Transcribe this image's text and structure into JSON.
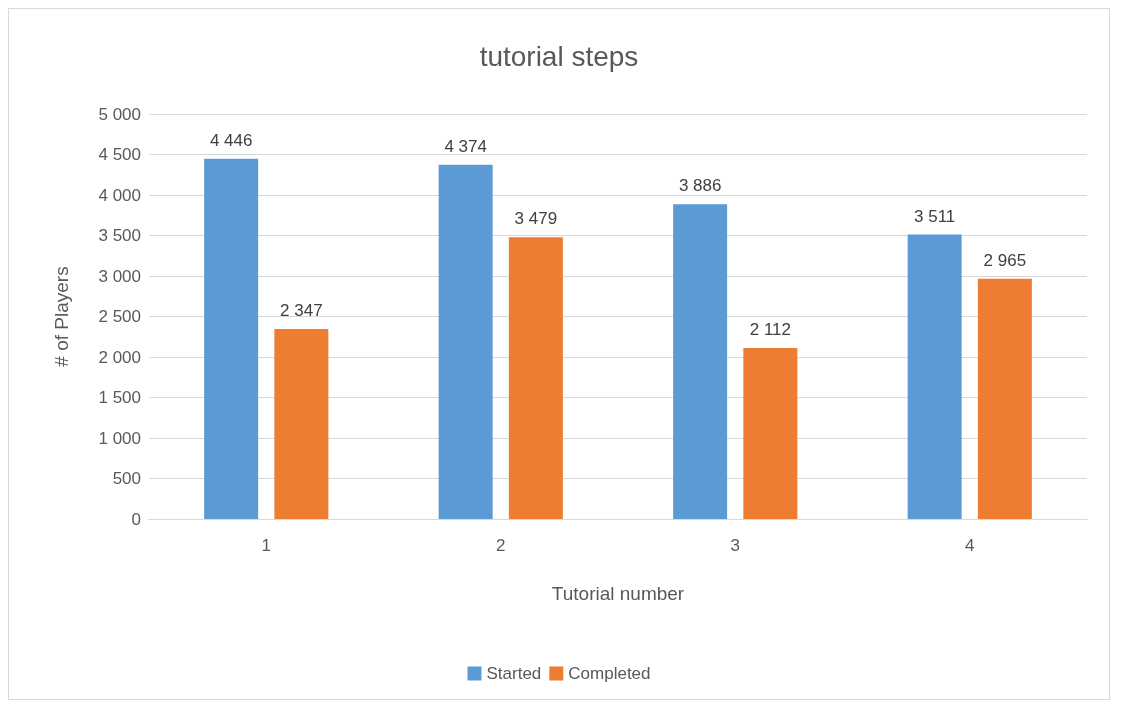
{
  "chart_data": {
    "type": "bar",
    "title": "tutorial steps",
    "xlabel": "Tutorial number",
    "ylabel": "# of Players",
    "categories": [
      "1",
      "2",
      "3",
      "4"
    ],
    "series": [
      {
        "name": "Started",
        "color": "#5b9bd5",
        "values": [
          4446,
          4374,
          3886,
          3511
        ],
        "value_labels": [
          "4 446",
          "4 374",
          "3 886",
          "3 511"
        ]
      },
      {
        "name": "Completed",
        "color": "#ed7d31",
        "values": [
          2347,
          3479,
          2112,
          2965
        ],
        "value_labels": [
          "2 347",
          "3 479",
          "2 112",
          "2 965"
        ]
      }
    ],
    "ylim": [
      0,
      5000
    ],
    "yticks": [
      0,
      500,
      {
        "value": 1000,
        "label": "1 000"
      },
      {
        "value": 1500,
        "label": "1 500"
      },
      {
        "value": 2000,
        "label": "2 000"
      },
      {
        "value": 2500,
        "label": "2 500"
      },
      {
        "value": 3000,
        "label": "3 000"
      },
      {
        "value": 3500,
        "label": "3 500"
      },
      {
        "value": 4000,
        "label": "4 000"
      },
      {
        "value": 4500,
        "label": "4 500"
      },
      {
        "value": 5000,
        "label": "5 000"
      }
    ],
    "grid": "y",
    "legend": "bottom"
  }
}
